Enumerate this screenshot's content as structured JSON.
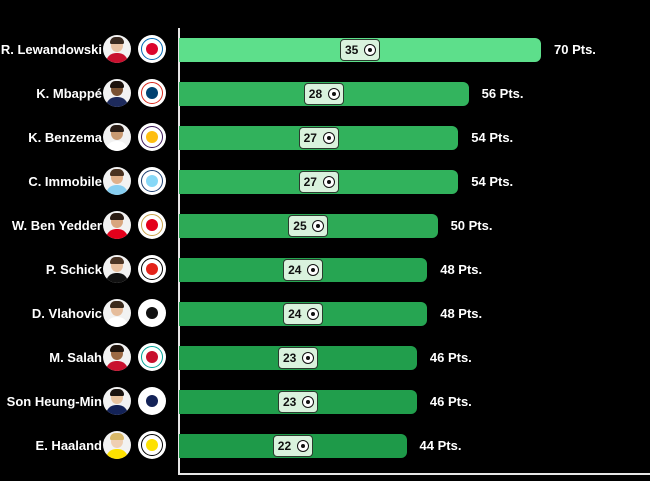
{
  "chart_data": {
    "type": "bar",
    "orientation": "horizontal",
    "title": "",
    "xlabel": "",
    "ylabel": "",
    "xlim": [
      0,
      75
    ],
    "grid": false,
    "categories": [
      "R. Lewandowski",
      "K. Mbappé",
      "K. Benzema",
      "C. Immobile",
      "W. Ben Yedder",
      "P. Schick",
      "D. Vlahovic",
      "M. Salah",
      "Son Heung-Min",
      "E. Haaland"
    ],
    "series": [
      {
        "values": [
          70,
          56,
          54,
          54,
          50,
          48,
          48,
          46,
          46,
          44
        ]
      },
      {
        "values": [
          35,
          28,
          27,
          27,
          25,
          24,
          24,
          23,
          23,
          22
        ]
      }
    ],
    "goals_labels": [
      "35",
      "28",
      "27",
      "27",
      "25",
      "24",
      "24",
      "23",
      "23",
      "22"
    ],
    "points_labels": [
      "70 Pts.",
      "56 Pts.",
      "54 Pts.",
      "54 Pts.",
      "50 Pts.",
      "48 Pts.",
      "48 Pts.",
      "46 Pts.",
      "46 Pts.",
      "44 Pts."
    ],
    "ball_icon": "football-icon",
    "bar_colors": [
      "#5ddf8b",
      "#33b45e",
      "#31b25c",
      "#31b25c",
      "#2daa56",
      "#26a552",
      "#26a552",
      "#219e4c",
      "#219e4c",
      "#1e9a49"
    ],
    "badge_color": "#d9f2dd",
    "background_color": "#000000",
    "players": [
      {
        "icon": "player-lewandowski-photo",
        "skin": "#e8c2a4",
        "hair": "#3a2a20",
        "shirt": "#c8102e",
        "club_icon": "bayern-munich-crest",
        "club_primary": "#dc052d",
        "club_secondary": "#0066b2"
      },
      {
        "icon": "player-mbappe-photo",
        "skin": "#7a5232",
        "hair": "#1c120c",
        "shirt": "#1d2a5b",
        "club_icon": "psg-crest",
        "club_primary": "#004170",
        "club_secondary": "#da291c"
      },
      {
        "icon": "player-benzema-photo",
        "skin": "#c99a72",
        "hair": "#2a1d16",
        "shirt": "#ffffff",
        "club_icon": "real-madrid-crest",
        "club_primary": "#febe10",
        "club_secondary": "#3d195b"
      },
      {
        "icon": "player-immobile-photo",
        "skin": "#e0b08a",
        "hair": "#4a3220",
        "shirt": "#87cef0",
        "club_icon": "lazio-crest",
        "club_primary": "#87d8f7",
        "club_secondary": "#1b3f72"
      },
      {
        "icon": "player-ben-yedder-photo",
        "skin": "#d8a67e",
        "hair": "#2b1d14",
        "shirt": "#e3001b",
        "club_icon": "monaco-crest",
        "club_primary": "#e3001b",
        "club_secondary": "#c9a24a"
      },
      {
        "icon": "player-schick-photo",
        "skin": "#e7bf9f",
        "hair": "#4b3424",
        "shirt": "#111111",
        "club_icon": "leverkusen-crest",
        "club_primary": "#e32219",
        "club_secondary": "#000000"
      },
      {
        "icon": "player-vlahovic-photo",
        "skin": "#e6bd9c",
        "hair": "#3b2a1c",
        "shirt": "#ffffff",
        "club_icon": "juventus-crest",
        "club_primary": "#111111",
        "club_secondary": "#ffffff"
      },
      {
        "icon": "player-salah-photo",
        "skin": "#9c6a45",
        "hair": "#1f140d",
        "shirt": "#c8102e",
        "club_icon": "liverpool-crest",
        "club_primary": "#c8102e",
        "club_secondary": "#00a398"
      },
      {
        "icon": "player-son-photo",
        "skin": "#e8c4a0",
        "hair": "#1a1410",
        "shirt": "#132257",
        "club_icon": "tottenham-crest",
        "club_primary": "#132257",
        "club_secondary": "#ffffff"
      },
      {
        "icon": "player-haaland-photo",
        "skin": "#efcfb3",
        "hair": "#d8b868",
        "shirt": "#fde100",
        "club_icon": "dortmund-crest",
        "club_primary": "#fde100",
        "club_secondary": "#000000"
      }
    ]
  }
}
